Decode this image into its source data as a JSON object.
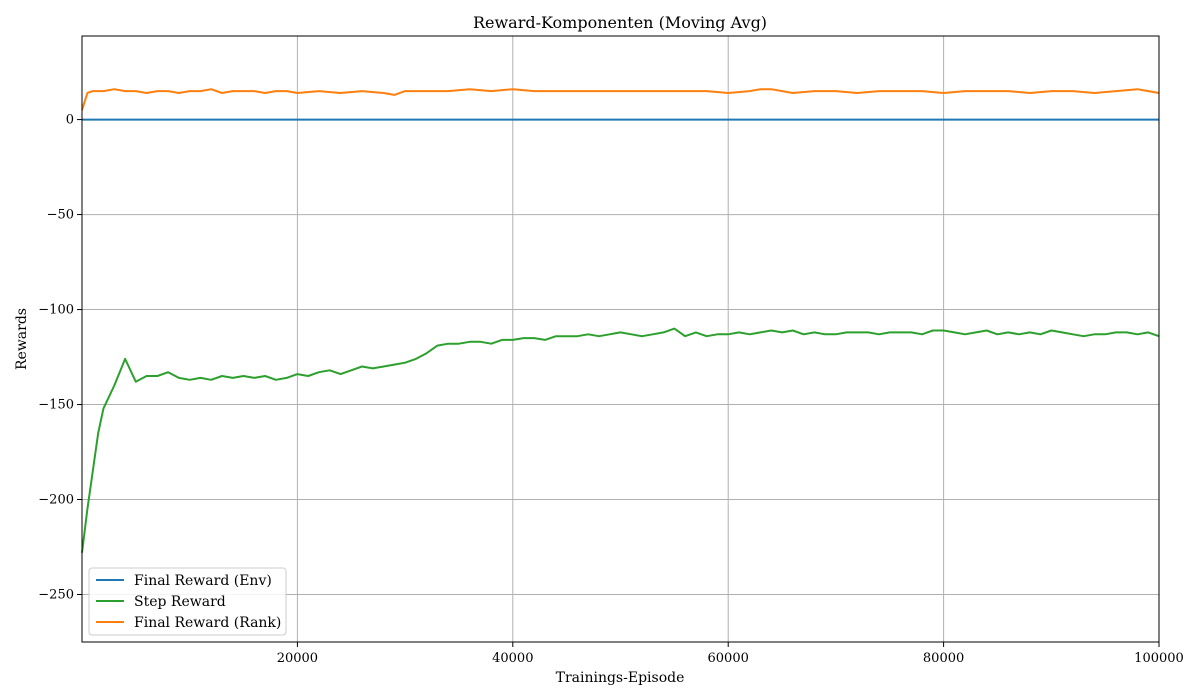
{
  "chart_data": {
    "type": "line",
    "title": "Reward-Komponenten (Moving Avg)",
    "xlabel": "Trainings-Episode",
    "ylabel": "Rewards",
    "xlim": [
      0,
      100000
    ],
    "ylim": [
      -275,
      44
    ],
    "xticks": [
      20000,
      40000,
      60000,
      80000,
      100000
    ],
    "xtick_labels": [
      "20000",
      "40000",
      "60000",
      "80000",
      "100000"
    ],
    "yticks": [
      -250,
      -200,
      -150,
      -100,
      -50,
      0
    ],
    "ytick_labels": [
      "−250",
      "−200",
      "−150",
      "−100",
      "−50",
      "0"
    ],
    "grid": true,
    "legend_position": "lower-left",
    "series": [
      {
        "name": "Final Reward (Env)",
        "color": "#1f77b4",
        "x": [
          0,
          100000
        ],
        "y": [
          0,
          0
        ]
      },
      {
        "name": "Step Reward",
        "color": "#2ca02c",
        "x": [
          0,
          500,
          1000,
          1500,
          2000,
          2500,
          3000,
          3500,
          4000,
          5000,
          6000,
          7000,
          8000,
          9000,
          10000,
          11000,
          12000,
          13000,
          14000,
          15000,
          16000,
          17000,
          18000,
          19000,
          20000,
          21000,
          22000,
          23000,
          24000,
          25000,
          26000,
          27000,
          28000,
          29000,
          30000,
          31000,
          32000,
          33000,
          34000,
          35000,
          36000,
          37000,
          38000,
          39000,
          40000,
          41000,
          42000,
          43000,
          44000,
          45000,
          46000,
          47000,
          48000,
          49000,
          50000,
          51000,
          52000,
          53000,
          54000,
          55000,
          56000,
          57000,
          58000,
          59000,
          60000,
          61000,
          62000,
          63000,
          64000,
          65000,
          66000,
          67000,
          68000,
          69000,
          70000,
          71000,
          72000,
          73000,
          74000,
          75000,
          76000,
          77000,
          78000,
          79000,
          80000,
          81000,
          82000,
          83000,
          84000,
          85000,
          86000,
          87000,
          88000,
          89000,
          90000,
          91000,
          92000,
          93000,
          94000,
          95000,
          96000,
          97000,
          98000,
          99000,
          100000
        ],
        "y": [
          -228,
          -205,
          -185,
          -165,
          -152,
          -146,
          -140,
          -133,
          -126,
          -138,
          -135,
          -135,
          -133,
          -136,
          -137,
          -136,
          -137,
          -135,
          -136,
          -135,
          -136,
          -135,
          -137,
          -136,
          -134,
          -135,
          -133,
          -132,
          -134,
          -132,
          -130,
          -131,
          -130,
          -129,
          -128,
          -126,
          -123,
          -119,
          -118,
          -118,
          -117,
          -117,
          -118,
          -116,
          -116,
          -115,
          -115,
          -116,
          -114,
          -114,
          -114,
          -113,
          -114,
          -113,
          -112,
          -113,
          -114,
          -113,
          -112,
          -110,
          -114,
          -112,
          -114,
          -113,
          -113,
          -112,
          -113,
          -112,
          -111,
          -112,
          -111,
          -113,
          -112,
          -113,
          -113,
          -112,
          -112,
          -112,
          -113,
          -112,
          -112,
          -112,
          -113,
          -111,
          -111,
          -112,
          -113,
          -112,
          -111,
          -113,
          -112,
          -113,
          -112,
          -113,
          -111,
          -112,
          -113,
          -114,
          -113,
          -113,
          -112,
          -112,
          -113,
          -112,
          -114
        ]
      },
      {
        "name": "Final Reward (Rank)",
        "color": "#ff7f0e",
        "x": [
          0,
          500,
          1000,
          2000,
          3000,
          4000,
          5000,
          6000,
          7000,
          8000,
          9000,
          10000,
          11000,
          12000,
          13000,
          14000,
          15000,
          16000,
          17000,
          18000,
          19000,
          20000,
          22000,
          24000,
          26000,
          28000,
          29000,
          30000,
          32000,
          34000,
          36000,
          38000,
          40000,
          42000,
          44000,
          46000,
          48000,
          50000,
          52000,
          54000,
          56000,
          58000,
          60000,
          62000,
          63000,
          64000,
          66000,
          68000,
          70000,
          72000,
          74000,
          76000,
          78000,
          80000,
          82000,
          84000,
          86000,
          88000,
          90000,
          92000,
          94000,
          96000,
          98000,
          100000
        ],
        "y": [
          5,
          14,
          15,
          15,
          16,
          15,
          15,
          14,
          15,
          15,
          14,
          15,
          15,
          16,
          14,
          15,
          15,
          15,
          14,
          15,
          15,
          14,
          15,
          14,
          15,
          14,
          13,
          15,
          15,
          15,
          16,
          15,
          16,
          15,
          15,
          15,
          15,
          15,
          15,
          15,
          15,
          15,
          14,
          15,
          16,
          16,
          14,
          15,
          15,
          14,
          15,
          15,
          15,
          14,
          15,
          15,
          15,
          14,
          15,
          15,
          14,
          15,
          16,
          14
        ]
      }
    ]
  }
}
